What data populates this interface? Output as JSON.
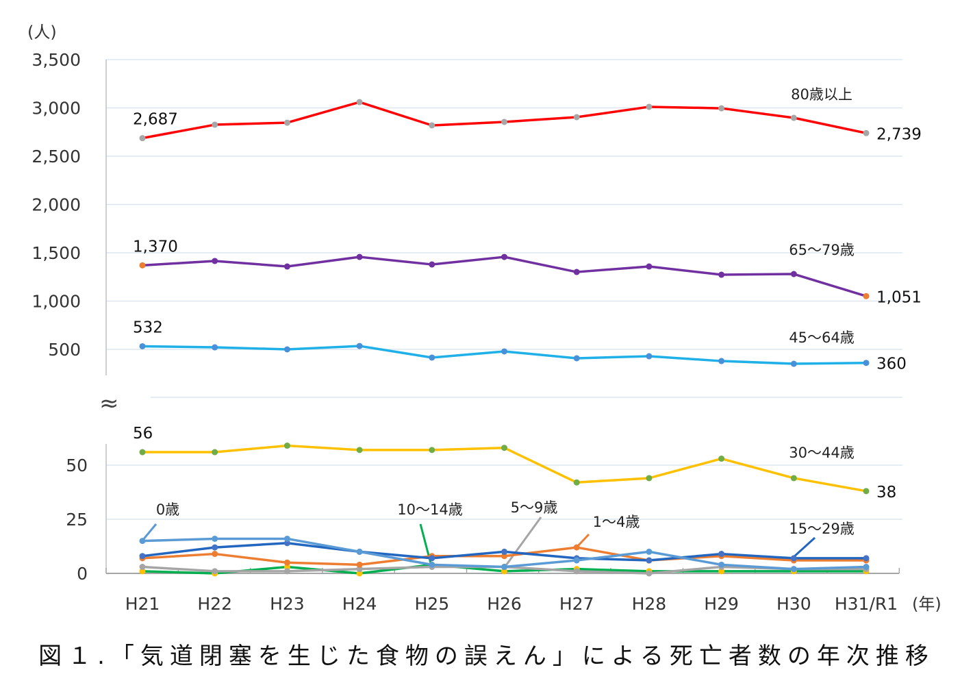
{
  "chart_data": {
    "type": "line",
    "title": "図１.「気道閉塞を生じた食物の誤えん」による死亡者数の年次推移",
    "ylabel": "(人)",
    "xlabel": "(年)",
    "categories": [
      "H21",
      "H22",
      "H23",
      "H24",
      "H25",
      "H26",
      "H27",
      "H28",
      "H29",
      "H30",
      "H31/R1"
    ],
    "upper_axis": {
      "ylim": [
        0,
        3500
      ],
      "ticks": [
        "3,500",
        "3,000",
        "2,500",
        "2,000",
        "1,500",
        "1,000",
        "500"
      ],
      "tick_values": [
        3500,
        3000,
        2500,
        2000,
        1500,
        1000,
        500
      ]
    },
    "lower_axis": {
      "ylim": [
        0,
        60
      ],
      "ticks": [
        "50",
        "25",
        "0"
      ],
      "tick_values": [
        50,
        25,
        0
      ]
    },
    "axis_break_symbol": "≈",
    "grid": true,
    "series": [
      {
        "name": "80歳以上",
        "panel": "upper",
        "color": "#ff0000",
        "marker": "#a6a6a6",
        "values": [
          2687,
          2826,
          2847,
          3060,
          2819,
          2855,
          2904,
          3011,
          2996,
          2897,
          2739
        ],
        "labels": {
          "first": "2,687",
          "last": "2,739"
        }
      },
      {
        "name": "65～79歳",
        "panel": "upper",
        "color": "#7030a0",
        "marker": "#7030a0",
        "end_marker": "#ed7d31",
        "values": [
          1370,
          1415,
          1358,
          1457,
          1379,
          1457,
          1301,
          1358,
          1273,
          1280,
          1051
        ],
        "labels": {
          "first": "1,370",
          "last": "1,051"
        }
      },
      {
        "name": "45～64歳",
        "panel": "upper",
        "color": "#1fb0e8",
        "marker": "#4a90d9",
        "values": [
          532,
          521,
          500,
          535,
          415,
          479,
          408,
          429,
          379,
          351,
          360
        ],
        "labels": {
          "first": "532",
          "last": "360"
        }
      },
      {
        "name": "30～44歳",
        "panel": "lower",
        "color": "#ffc000",
        "marker": "#70ad47",
        "values": [
          56,
          56,
          59,
          57,
          57,
          58,
          42,
          44,
          53,
          44,
          38
        ],
        "labels": {
          "first": "56",
          "last": "38"
        }
      },
      {
        "name": "0歳",
        "panel": "lower",
        "color": "#5b9bd5",
        "marker": "#5b9bd5",
        "values": [
          15,
          16,
          16,
          10,
          4,
          3,
          6,
          10,
          4,
          2,
          3
        ]
      },
      {
        "name": "15～29歳",
        "panel": "lower",
        "color": "#2266c0",
        "marker": "#4472c4",
        "values": [
          8,
          12,
          14,
          10,
          7,
          10,
          7,
          6,
          9,
          7,
          7
        ]
      },
      {
        "name": "1～4歳",
        "panel": "lower",
        "color": "#ed7d31",
        "marker": "#ed7d31",
        "values": [
          7,
          9,
          5,
          4,
          8,
          8,
          12,
          6,
          8,
          6,
          6
        ]
      },
      {
        "name": "5～9歳",
        "panel": "lower",
        "color": "#a5a5a5",
        "marker": "#a5a5a5",
        "values": [
          3,
          1,
          1,
          2,
          3,
          3,
          1,
          0,
          3,
          2,
          2
        ]
      },
      {
        "name": "10～14歳",
        "panel": "lower",
        "color": "#00b050",
        "marker": "#ffc000",
        "values": [
          1,
          0,
          3,
          0,
          4,
          1,
          2,
          1,
          1,
          1,
          1
        ]
      }
    ]
  }
}
